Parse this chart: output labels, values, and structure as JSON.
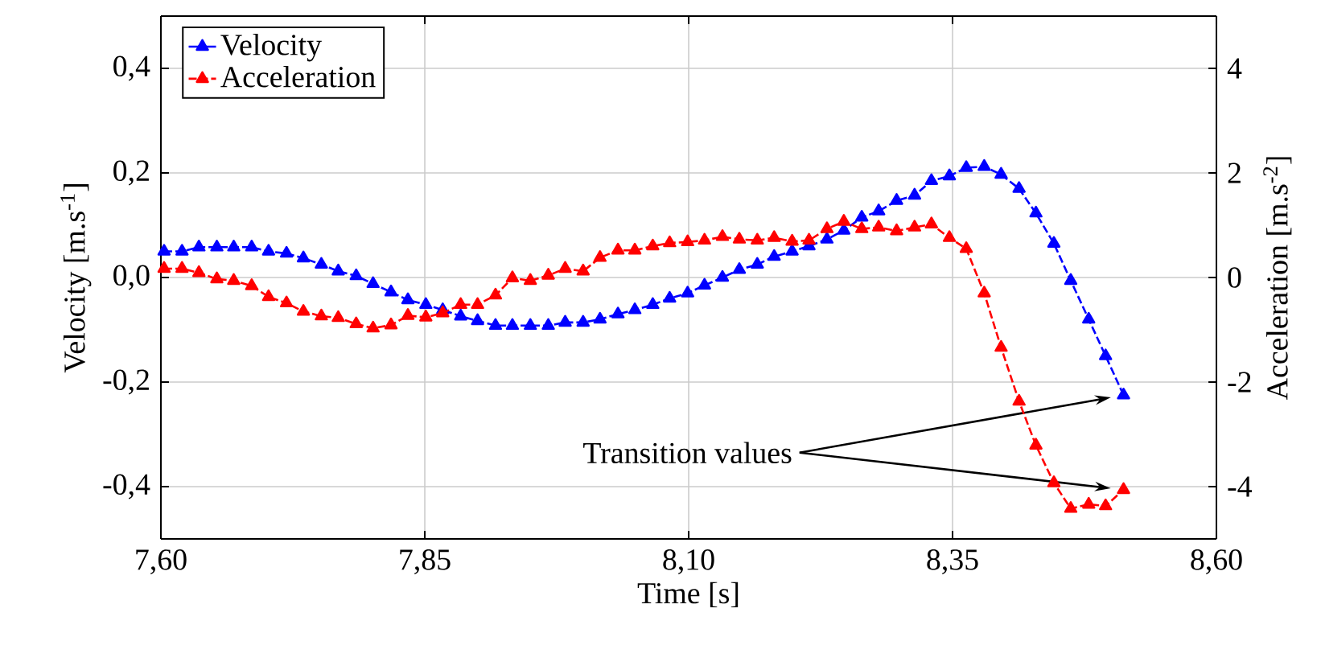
{
  "chart_data": {
    "type": "line",
    "xlabel": "Time [s]",
    "ylabel": "Velocity [m.s$^{-1}$]",
    "y2label": "Acceleration [m.s$^{-2}$]",
    "x": [
      7.603,
      7.62,
      7.636,
      7.653,
      7.669,
      7.686,
      7.702,
      7.719,
      7.735,
      7.752,
      7.768,
      7.785,
      7.801,
      7.818,
      7.834,
      7.851,
      7.867,
      7.884,
      7.9,
      7.917,
      7.933,
      7.95,
      7.967,
      7.983,
      8.0,
      8.016,
      8.033,
      8.049,
      8.066,
      8.082,
      8.099,
      8.115,
      8.132,
      8.148,
      8.165,
      8.181,
      8.198,
      8.214,
      8.231,
      8.247,
      8.264,
      8.28,
      8.297,
      8.314,
      8.33,
      8.347,
      8.363,
      8.38,
      8.396,
      8.413,
      8.429,
      8.446,
      8.462,
      8.479,
      8.495,
      8.512
    ],
    "series": [
      {
        "name": "Velocity",
        "color": "#0000ff",
        "values": [
          0.05,
          0.05,
          0.058,
          0.058,
          0.058,
          0.058,
          0.05,
          0.046,
          0.037,
          0.025,
          0.012,
          0.003,
          -0.012,
          -0.028,
          -0.043,
          -0.052,
          -0.062,
          -0.074,
          -0.083,
          -0.092,
          -0.092,
          -0.092,
          -0.092,
          -0.086,
          -0.086,
          -0.08,
          -0.07,
          -0.062,
          -0.052,
          -0.04,
          -0.03,
          -0.015,
          0.0,
          0.015,
          0.025,
          0.04,
          0.05,
          0.06,
          0.073,
          0.09,
          0.115,
          0.127,
          0.147,
          0.157,
          0.185,
          0.194,
          0.21,
          0.212,
          0.197,
          0.17,
          0.123,
          0.065,
          -0.006,
          -0.08,
          -0.15,
          -0.225
        ]
      },
      {
        "name": "Acceleration",
        "color": "#ff0000",
        "axis": "y2",
        "values": [
          0.17,
          0.17,
          0.09,
          -0.03,
          -0.06,
          -0.16,
          -0.37,
          -0.49,
          -0.65,
          -0.74,
          -0.77,
          -0.89,
          -0.97,
          -0.91,
          -0.73,
          -0.76,
          -0.68,
          -0.52,
          -0.52,
          -0.34,
          -0.01,
          -0.06,
          0.04,
          0.17,
          0.12,
          0.38,
          0.52,
          0.52,
          0.6,
          0.66,
          0.68,
          0.71,
          0.78,
          0.73,
          0.71,
          0.76,
          0.69,
          0.71,
          0.93,
          1.07,
          0.93,
          0.96,
          0.89,
          0.96,
          1.02,
          0.76,
          0.55,
          -0.3,
          -1.34,
          -2.37,
          -3.21,
          -3.93,
          -4.42,
          -4.34,
          -4.37,
          -4.06
        ]
      }
    ],
    "xlim": [
      7.6,
      8.6
    ],
    "xticks": [
      {
        "value": 7.6,
        "label": "7,60"
      },
      {
        "value": 7.85,
        "label": "7,85"
      },
      {
        "value": 8.1,
        "label": "8,10"
      },
      {
        "value": 8.35,
        "label": "8,35"
      },
      {
        "value": 8.6,
        "label": "8,60"
      }
    ],
    "ylim": [
      -0.5,
      0.5
    ],
    "yticks": [
      {
        "value": -0.4,
        "label": "-0,4"
      },
      {
        "value": -0.2,
        "label": "-0,2"
      },
      {
        "value": 0.0,
        "label": "0,0"
      },
      {
        "value": 0.2,
        "label": "0,2"
      },
      {
        "value": 0.4,
        "label": "0,4"
      }
    ],
    "y2lim": [
      -5,
      5
    ],
    "y2ticks": [
      -4,
      -2,
      0,
      2,
      4
    ],
    "annotations": [
      "Transition values"
    ],
    "grid": true,
    "legend": "top left",
    "marker": "triangle",
    "line_style": "dashed"
  }
}
